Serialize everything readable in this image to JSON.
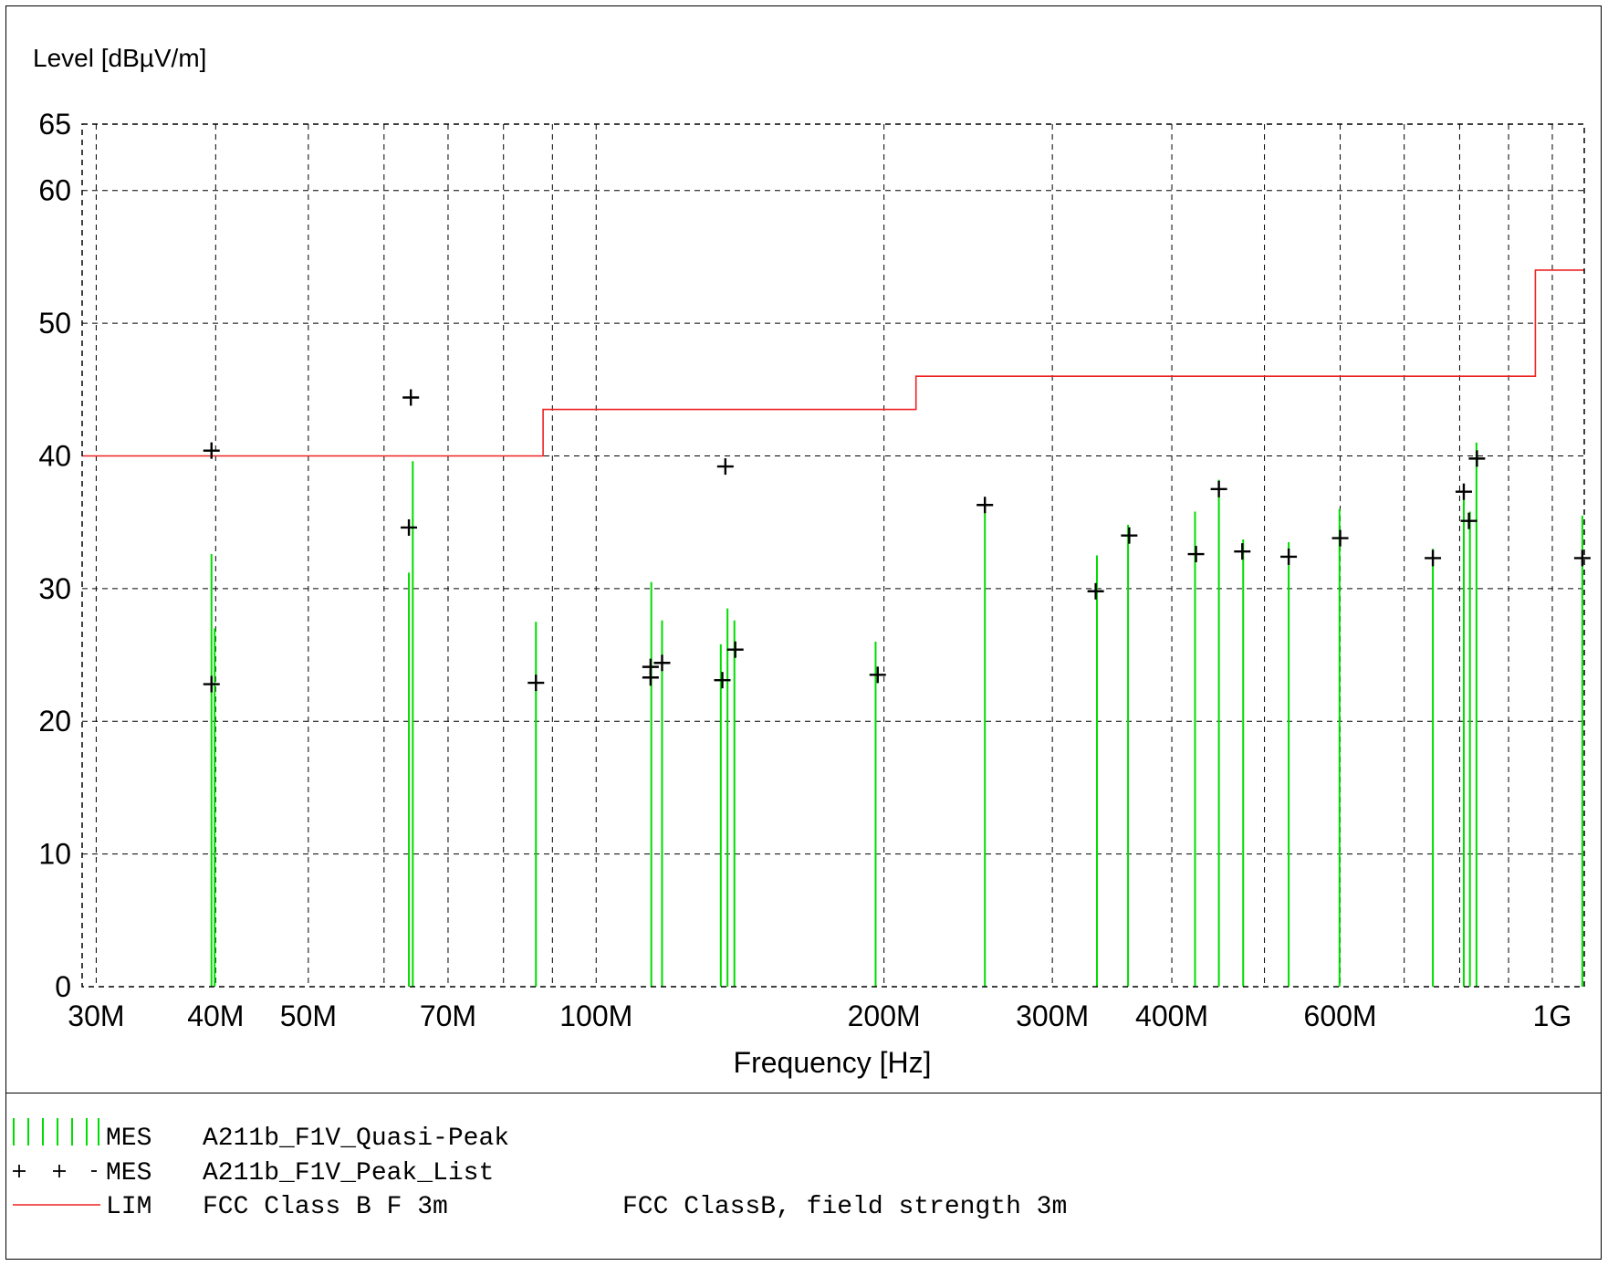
{
  "chart_data": {
    "type": "scatter",
    "ylabel": "Level [dBµV/m]",
    "xlabel": "Frequency [Hz]",
    "x_scale": "log",
    "xlim": [
      29000000,
      1080000000
    ],
    "ylim": [
      0,
      65
    ],
    "grid": true,
    "x_tick_values": [
      30000000,
      40000000,
      50000000,
      70000000,
      100000000,
      200000000,
      300000000,
      400000000,
      600000000,
      1000000000
    ],
    "x_tick_labels": [
      "30M",
      "40M",
      "50M",
      "70M",
      "100M",
      "200M",
      "300M",
      "400M",
      "600M",
      "1G"
    ],
    "x_minor_grid": [
      60000000,
      80000000,
      90000000,
      500000000,
      700000000,
      800000000,
      900000000
    ],
    "y_ticks": [
      0,
      10,
      20,
      30,
      40,
      50,
      60,
      65
    ],
    "series": [
      {
        "name": "A211b_F1V_Quasi-Peak",
        "tag": "MES",
        "kind": "vertical-lines",
        "color": "#00dd00",
        "points": [
          {
            "x": 39600000,
            "y": 32.6
          },
          {
            "x": 39900000,
            "y": 27.0
          },
          {
            "x": 63700000,
            "y": 31.2
          },
          {
            "x": 64300000,
            "y": 39.6
          },
          {
            "x": 86500000,
            "y": 27.5
          },
          {
            "x": 114200000,
            "y": 30.5
          },
          {
            "x": 117200000,
            "y": 27.6
          },
          {
            "x": 135000000,
            "y": 25.8
          },
          {
            "x": 137200000,
            "y": 28.5
          },
          {
            "x": 139500000,
            "y": 27.6
          },
          {
            "x": 196000000,
            "y": 26.0
          },
          {
            "x": 255000000,
            "y": 36.5
          },
          {
            "x": 334000000,
            "y": 32.5
          },
          {
            "x": 360000000,
            "y": 34.8
          },
          {
            "x": 423000000,
            "y": 35.8
          },
          {
            "x": 448000000,
            "y": 38.2
          },
          {
            "x": 475000000,
            "y": 33.7
          },
          {
            "x": 530000000,
            "y": 33.5
          },
          {
            "x": 599000000,
            "y": 36.0
          },
          {
            "x": 750000000,
            "y": 33.0
          },
          {
            "x": 808000000,
            "y": 37.5
          },
          {
            "x": 820000000,
            "y": 35.8
          },
          {
            "x": 833000000,
            "y": 41.0
          },
          {
            "x": 1075000000,
            "y": 35.5
          }
        ]
      },
      {
        "name": "A211b_F1V_Peak_List",
        "tag": "MES",
        "kind": "plus-markers",
        "color": "#000000",
        "points": [
          {
            "x": 39600000,
            "y": 40.4
          },
          {
            "x": 39600000,
            "y": 22.8
          },
          {
            "x": 64000000,
            "y": 44.4
          },
          {
            "x": 63700000,
            "y": 34.6
          },
          {
            "x": 86500000,
            "y": 22.9
          },
          {
            "x": 114000000,
            "y": 24.1
          },
          {
            "x": 114000000,
            "y": 23.3
          },
          {
            "x": 117200000,
            "y": 24.4
          },
          {
            "x": 136500000,
            "y": 39.2
          },
          {
            "x": 135500000,
            "y": 23.1
          },
          {
            "x": 139800000,
            "y": 25.4
          },
          {
            "x": 197000000,
            "y": 23.5
          },
          {
            "x": 255000000,
            "y": 36.3
          },
          {
            "x": 333000000,
            "y": 29.8
          },
          {
            "x": 361000000,
            "y": 34.0
          },
          {
            "x": 424000000,
            "y": 32.6
          },
          {
            "x": 448000000,
            "y": 37.5
          },
          {
            "x": 474000000,
            "y": 32.8
          },
          {
            "x": 530000000,
            "y": 32.4
          },
          {
            "x": 600000000,
            "y": 33.8
          },
          {
            "x": 750000000,
            "y": 32.3
          },
          {
            "x": 808000000,
            "y": 37.3
          },
          {
            "x": 818000000,
            "y": 35.1
          },
          {
            "x": 834000000,
            "y": 39.8
          },
          {
            "x": 1075000000,
            "y": 32.3
          }
        ]
      },
      {
        "name": "FCC Class B F 3m",
        "tag": "LIM",
        "description": "FCC ClassB, field strength 3m",
        "kind": "step-line",
        "color": "#ee2222",
        "points": [
          {
            "x": 29000000,
            "y": 40.0
          },
          {
            "x": 88000000,
            "y": 40.0
          },
          {
            "x": 88000000,
            "y": 43.5
          },
          {
            "x": 216000000,
            "y": 43.5
          },
          {
            "x": 216000000,
            "y": 46.0
          },
          {
            "x": 960000000,
            "y": 46.0
          },
          {
            "x": 960000000,
            "y": 54.0
          },
          {
            "x": 1080000000,
            "y": 54.0
          }
        ]
      }
    ]
  },
  "legend": {
    "rows": [
      {
        "tag": "MES",
        "name": "A211b_F1V_Quasi-Peak",
        "description": ""
      },
      {
        "tag": "MES",
        "name": "A211b_F1V_Peak_List",
        "description": ""
      },
      {
        "tag": "LIM",
        "name": "FCC Class B F 3m",
        "description": "FCC ClassB, field strength 3m"
      }
    ]
  }
}
